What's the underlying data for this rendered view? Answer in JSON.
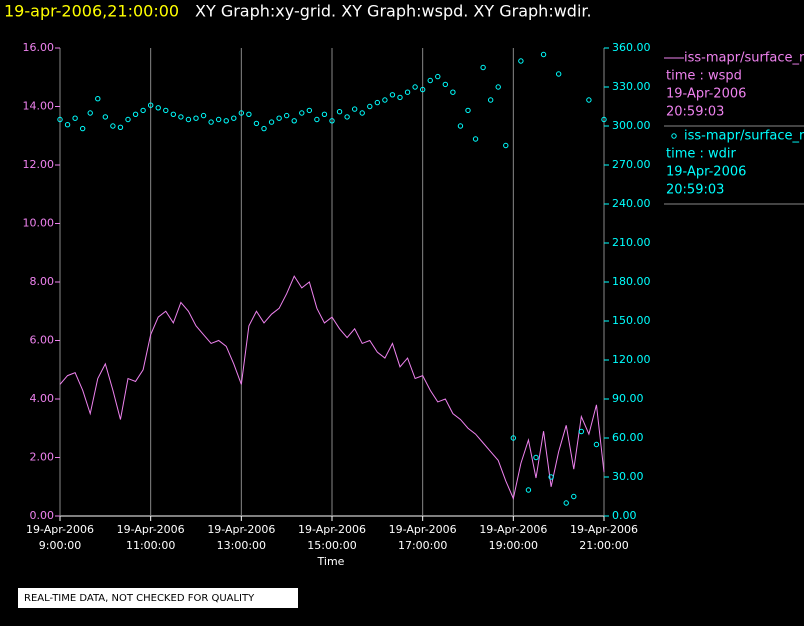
{
  "chart_data": {
    "type": "line",
    "title": "19-apr-2006,21:00:00",
    "subtitle": "XY Graph:xy-grid.  XY Graph:wspd.  XY Graph:wdir.",
    "x_label": "Time",
    "note": "REAL-TIME DATA, NOT CHECKED FOR QUALITY",
    "grid": true,
    "x": [
      "2006-04-19T09:00:00",
      "2006-04-19T09:10:00",
      "2006-04-19T09:20:00",
      "2006-04-19T09:30:00",
      "2006-04-19T09:40:00",
      "2006-04-19T09:50:00",
      "2006-04-19T10:00:00",
      "2006-04-19T10:10:00",
      "2006-04-19T10:20:00",
      "2006-04-19T10:30:00",
      "2006-04-19T10:40:00",
      "2006-04-19T10:50:00",
      "2006-04-19T11:00:00",
      "2006-04-19T11:10:00",
      "2006-04-19T11:20:00",
      "2006-04-19T11:30:00",
      "2006-04-19T11:40:00",
      "2006-04-19T11:50:00",
      "2006-04-19T12:00:00",
      "2006-04-19T12:10:00",
      "2006-04-19T12:20:00",
      "2006-04-19T12:30:00",
      "2006-04-19T12:40:00",
      "2006-04-19T12:50:00",
      "2006-04-19T13:00:00",
      "2006-04-19T13:10:00",
      "2006-04-19T13:20:00",
      "2006-04-19T13:30:00",
      "2006-04-19T13:40:00",
      "2006-04-19T13:50:00",
      "2006-04-19T14:00:00",
      "2006-04-19T14:10:00",
      "2006-04-19T14:20:00",
      "2006-04-19T14:30:00",
      "2006-04-19T14:40:00",
      "2006-04-19T14:50:00",
      "2006-04-19T15:00:00",
      "2006-04-19T15:10:00",
      "2006-04-19T15:20:00",
      "2006-04-19T15:30:00",
      "2006-04-19T15:40:00",
      "2006-04-19T15:50:00",
      "2006-04-19T16:00:00",
      "2006-04-19T16:10:00",
      "2006-04-19T16:20:00",
      "2006-04-19T16:30:00",
      "2006-04-19T16:40:00",
      "2006-04-19T16:50:00",
      "2006-04-19T17:00:00",
      "2006-04-19T17:10:00",
      "2006-04-19T17:20:00",
      "2006-04-19T17:30:00",
      "2006-04-19T17:40:00",
      "2006-04-19T17:50:00",
      "2006-04-19T18:00:00",
      "2006-04-19T18:10:00",
      "2006-04-19T18:20:00",
      "2006-04-19T18:30:00",
      "2006-04-19T18:40:00",
      "2006-04-19T18:50:00",
      "2006-04-19T19:00:00",
      "2006-04-19T19:10:00",
      "2006-04-19T19:20:00",
      "2006-04-19T19:30:00",
      "2006-04-19T19:40:00",
      "2006-04-19T19:50:00",
      "2006-04-19T20:00:00",
      "2006-04-19T20:10:00",
      "2006-04-19T20:20:00",
      "2006-04-19T20:30:00",
      "2006-04-19T20:40:00",
      "2006-04-19T20:50:00",
      "2006-04-19T21:00:00"
    ],
    "xlim": [
      "2006-04-19T09:00:00",
      "2006-04-19T21:00:00"
    ],
    "xticks": [
      {
        "value": "2006-04-19T09:00:00",
        "label": "19-Apr-2006 9:00:00"
      },
      {
        "value": "2006-04-19T11:00:00",
        "label": "19-Apr-2006 11:00:00"
      },
      {
        "value": "2006-04-19T13:00:00",
        "label": "19-Apr-2006 13:00:00"
      },
      {
        "value": "2006-04-19T15:00:00",
        "label": "19-Apr-2006 15:00:00"
      },
      {
        "value": "2006-04-19T17:00:00",
        "label": "19-Apr-2006 17:00:00"
      },
      {
        "value": "2006-04-19T19:00:00",
        "label": "19-Apr-2006 19:00:00"
      },
      {
        "value": "2006-04-19T21:00:00",
        "label": "19-Apr-2006 21:00:00"
      }
    ],
    "ylim": [
      0,
      16
    ],
    "yticks": [
      {
        "value": 0,
        "label": "0.00"
      },
      {
        "value": 2,
        "label": "2.00"
      },
      {
        "value": 4,
        "label": "4.00"
      },
      {
        "value": 6,
        "label": "6.00"
      },
      {
        "value": 8,
        "label": "8.00"
      },
      {
        "value": 10,
        "label": "10.00"
      },
      {
        "value": 12,
        "label": "12.00"
      },
      {
        "value": 14,
        "label": "14.00"
      },
      {
        "value": 16,
        "label": "16.00"
      }
    ],
    "y2lim": [
      0,
      360
    ],
    "y2ticks": [
      {
        "value": 0,
        "label": "0.00"
      },
      {
        "value": 30,
        "label": "30.00"
      },
      {
        "value": 60,
        "label": "60.00"
      },
      {
        "value": 90,
        "label": "90.00"
      },
      {
        "value": 120,
        "label": "120.00"
      },
      {
        "value": 150,
        "label": "150.00"
      },
      {
        "value": 180,
        "label": "180.00"
      },
      {
        "value": 210,
        "label": "210.00"
      },
      {
        "value": 240,
        "label": "240.00"
      },
      {
        "value": 270,
        "label": "270.00"
      },
      {
        "value": 300,
        "label": "300.00"
      },
      {
        "value": 330,
        "label": "330.00"
      },
      {
        "value": 360,
        "label": "360.00"
      }
    ],
    "series": [
      {
        "name": "iss-mapr/surface_r",
        "color": "#ee82ee",
        "mark": "line",
        "axis": "y",
        "legend_lines": [
          "time : wspd",
          "19-Apr-2006",
          "20:59:03"
        ],
        "values": [
          4.5,
          4.8,
          4.9,
          4.3,
          3.5,
          4.7,
          5.2,
          4.3,
          3.3,
          4.7,
          4.6,
          5.0,
          6.2,
          6.8,
          7.0,
          6.6,
          7.3,
          7.0,
          6.5,
          6.2,
          5.9,
          6.0,
          5.8,
          5.2,
          4.5,
          6.5,
          7.0,
          6.6,
          6.9,
          7.1,
          7.6,
          8.2,
          7.8,
          8.0,
          7.1,
          6.6,
          6.8,
          6.4,
          6.1,
          6.4,
          5.9,
          6.0,
          5.6,
          5.4,
          5.9,
          5.1,
          5.4,
          4.7,
          4.8,
          4.3,
          3.9,
          4.0,
          3.5,
          3.3,
          3.0,
          2.8,
          2.5,
          2.2,
          1.9,
          1.2,
          0.6,
          1.8,
          2.6,
          1.3,
          2.9,
          1.0,
          2.2,
          3.1,
          1.6,
          3.4,
          2.8,
          3.8,
          1.5
        ]
      },
      {
        "name": "iss-mapr/surface_r",
        "color": "#00ffff",
        "mark": "scatter",
        "axis": "y2",
        "legend_lines": [
          "time : wdir",
          "19-Apr-2006",
          "20:59:03"
        ],
        "values": [
          305,
          301,
          306,
          298,
          310,
          321,
          307,
          300,
          299,
          305,
          309,
          312,
          316,
          314,
          312,
          309,
          307,
          305,
          306,
          308,
          303,
          305,
          304,
          306,
          310,
          309,
          302,
          298,
          303,
          306,
          308,
          304,
          310,
          312,
          305,
          309,
          304,
          311,
          307,
          313,
          310,
          315,
          318,
          320,
          324,
          322,
          326,
          330,
          328,
          335,
          338,
          332,
          326,
          300,
          312,
          290,
          345,
          320,
          330,
          285,
          60,
          350,
          20,
          45,
          355,
          30,
          340,
          10,
          15,
          65,
          320,
          55,
          305
        ]
      }
    ]
  }
}
